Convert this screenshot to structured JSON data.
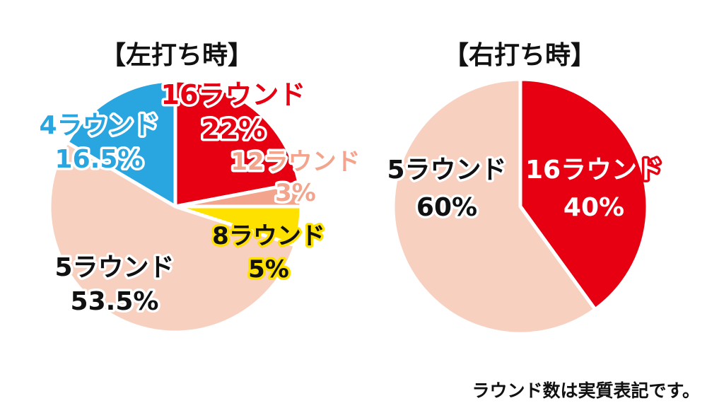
{
  "chart_data": [
    {
      "type": "pie",
      "title": "【左打ち時】",
      "slices": [
        {
          "label": "16ラウンド",
          "value": 22,
          "value_label": "22%",
          "color": "#e60012"
        },
        {
          "label": "12ラウンド",
          "value": 3,
          "value_label": "3%",
          "color": "#f2a48c"
        },
        {
          "label": "8ラウンド",
          "value": 5,
          "value_label": "5%",
          "color": "#ffe100"
        },
        {
          "label": "5ラウンド",
          "value": 53.5,
          "value_label": "53.5%",
          "color": "#f8d0bf"
        },
        {
          "label": "4ラウンド",
          "value": 16.5,
          "value_label": "16.5%",
          "color": "#29a5e0"
        }
      ]
    },
    {
      "type": "pie",
      "title": "【右打ち時】",
      "slices": [
        {
          "label": "16ラウンド",
          "value": 40,
          "value_label": "40%",
          "color": "#e60012"
        },
        {
          "label": "5ラウンド",
          "value": 60,
          "value_label": "60%",
          "color": "#f8d0bf"
        }
      ]
    }
  ],
  "footnote": "ラウンド数は実質表記です。"
}
